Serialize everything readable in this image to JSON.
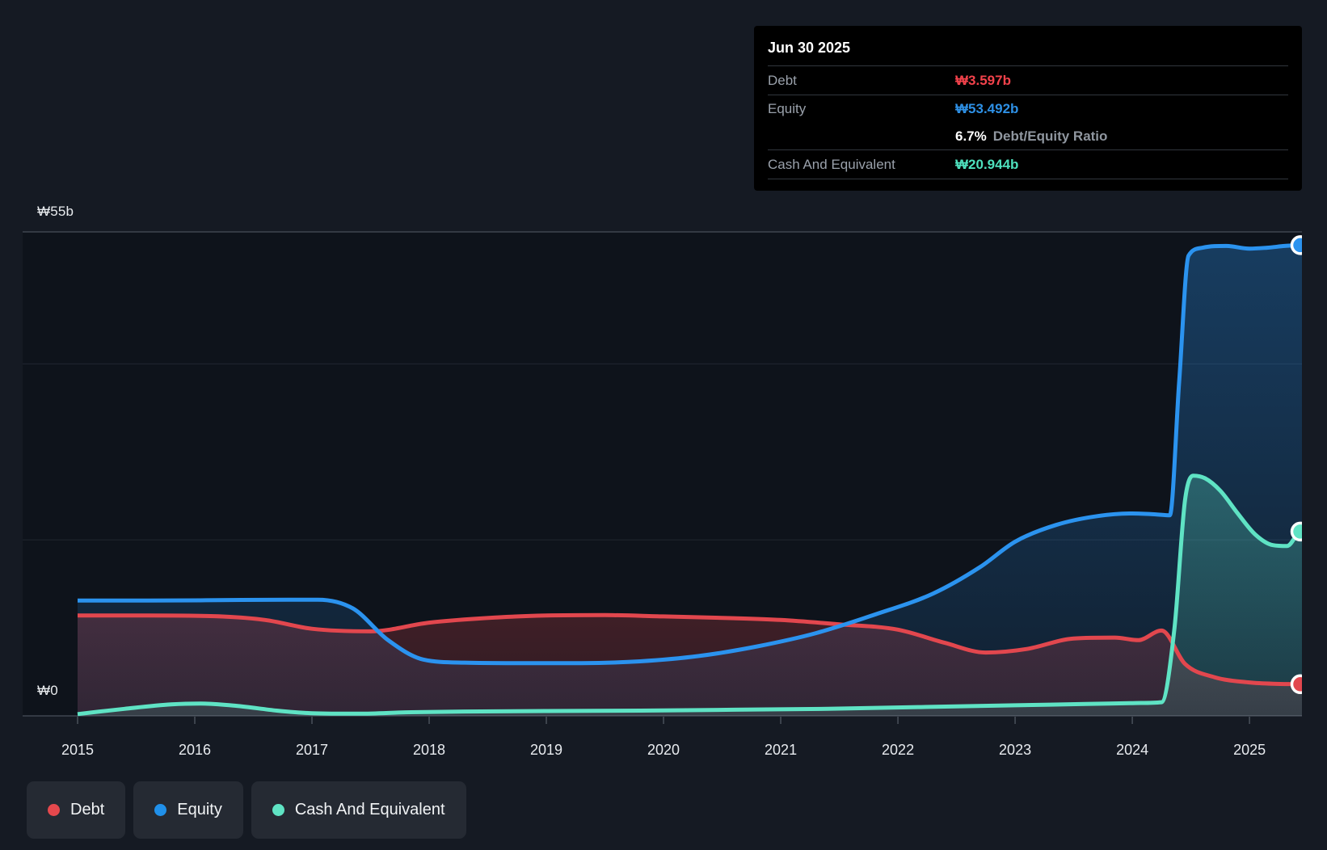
{
  "page": {
    "bg": "#151a23",
    "plot_bg": "#0e131b"
  },
  "tooltip": {
    "date": "Jun 30 2025",
    "debt_label": "Debt",
    "debt_value": "₩3.597b",
    "debt_color": "#f2424b",
    "equity_label": "Equity",
    "equity_value": "₩53.492b",
    "equity_color": "#2e90e5",
    "ratio_value": "6.7%",
    "ratio_label": "Debt/Equity Ratio",
    "cash_label": "Cash And Equivalent",
    "cash_value": "₩20.944b",
    "cash_color": "#4ee0bd"
  },
  "y_axis": {
    "top_label": "₩55b",
    "bottom_label": "₩0"
  },
  "x_axis": {
    "ticks": [
      "2015",
      "2016",
      "2017",
      "2018",
      "2019",
      "2020",
      "2021",
      "2022",
      "2023",
      "2024",
      "2025"
    ]
  },
  "legend": {
    "items": [
      {
        "label": "Debt",
        "color": "#e5484d"
      },
      {
        "label": "Equity",
        "color": "#2090ea"
      },
      {
        "label": "Cash And Equivalent",
        "color": "#5fe3c4"
      }
    ]
  },
  "chart_data": {
    "type": "area",
    "title": "Debt to Equity History",
    "x_unit": "year",
    "y_unit": "₩ billions",
    "xlim": [
      2015,
      2025.42
    ],
    "ylim": [
      0,
      55
    ],
    "grid": "horizontal",
    "gridline_values": [
      55,
      40,
      20,
      0
    ],
    "legend_position": "bottom-left",
    "series": [
      {
        "name": "Debt",
        "color": "#e2474e",
        "last_value_label": "₩3.597b",
        "points": [
          [
            2015.0,
            11.4
          ],
          [
            2015.6,
            11.4
          ],
          [
            2016.1,
            11.35
          ],
          [
            2016.6,
            10.9
          ],
          [
            2017.0,
            9.9
          ],
          [
            2017.5,
            9.6
          ],
          [
            2018.0,
            10.6
          ],
          [
            2018.6,
            11.2
          ],
          [
            2019.0,
            11.4
          ],
          [
            2019.5,
            11.45
          ],
          [
            2020.0,
            11.3
          ],
          [
            2020.6,
            11.1
          ],
          [
            2021.0,
            10.9
          ],
          [
            2021.5,
            10.4
          ],
          [
            2022.0,
            9.8
          ],
          [
            2022.4,
            8.3
          ],
          [
            2022.75,
            7.2
          ],
          [
            2023.1,
            7.6
          ],
          [
            2023.5,
            8.8
          ],
          [
            2023.85,
            8.9
          ],
          [
            2024.05,
            8.6
          ],
          [
            2024.25,
            9.7
          ],
          [
            2024.45,
            5.9
          ],
          [
            2024.7,
            4.4
          ],
          [
            2025.0,
            3.8
          ],
          [
            2025.2,
            3.65
          ],
          [
            2025.42,
            3.597
          ]
        ]
      },
      {
        "name": "Equity",
        "color": "#2b93ef",
        "last_value_label": "₩53.492b",
        "points": [
          [
            2015.0,
            13.1
          ],
          [
            2015.6,
            13.1
          ],
          [
            2016.2,
            13.15
          ],
          [
            2016.8,
            13.2
          ],
          [
            2017.05,
            13.2
          ],
          [
            2017.35,
            12.2
          ],
          [
            2017.65,
            8.6
          ],
          [
            2017.95,
            6.4
          ],
          [
            2018.3,
            6.05
          ],
          [
            2018.8,
            6.0
          ],
          [
            2019.3,
            6.0
          ],
          [
            2019.8,
            6.2
          ],
          [
            2020.3,
            6.8
          ],
          [
            2020.8,
            7.9
          ],
          [
            2021.3,
            9.4
          ],
          [
            2021.8,
            11.5
          ],
          [
            2022.3,
            13.9
          ],
          [
            2022.7,
            16.9
          ],
          [
            2023.0,
            19.8
          ],
          [
            2023.35,
            21.7
          ],
          [
            2023.7,
            22.7
          ],
          [
            2024.0,
            23.0
          ],
          [
            2024.2,
            22.9
          ],
          [
            2024.32,
            22.8
          ],
          [
            2024.4,
            38.0
          ],
          [
            2024.48,
            52.3
          ],
          [
            2024.6,
            53.2
          ],
          [
            2024.8,
            53.4
          ],
          [
            2025.0,
            53.1
          ],
          [
            2025.15,
            53.2
          ],
          [
            2025.3,
            53.4
          ],
          [
            2025.42,
            53.492
          ]
        ]
      },
      {
        "name": "Cash And Equivalent",
        "color": "#5fe3c4",
        "last_value_label": "₩20.944b",
        "points": [
          [
            2015.0,
            0.2
          ],
          [
            2015.4,
            0.8
          ],
          [
            2015.8,
            1.3
          ],
          [
            2016.05,
            1.4
          ],
          [
            2016.35,
            1.15
          ],
          [
            2016.7,
            0.6
          ],
          [
            2017.0,
            0.3
          ],
          [
            2017.4,
            0.25
          ],
          [
            2017.8,
            0.4
          ],
          [
            2018.3,
            0.5
          ],
          [
            2019.0,
            0.55
          ],
          [
            2019.8,
            0.6
          ],
          [
            2020.6,
            0.7
          ],
          [
            2021.4,
            0.8
          ],
          [
            2022.2,
            1.0
          ],
          [
            2023.0,
            1.2
          ],
          [
            2023.6,
            1.35
          ],
          [
            2024.0,
            1.45
          ],
          [
            2024.25,
            1.55
          ],
          [
            2024.36,
            10.0
          ],
          [
            2024.45,
            24.5
          ],
          [
            2024.52,
            27.3
          ],
          [
            2024.62,
            27.0
          ],
          [
            2024.75,
            25.6
          ],
          [
            2024.9,
            23.0
          ],
          [
            2025.05,
            20.6
          ],
          [
            2025.2,
            19.4
          ],
          [
            2025.32,
            19.3
          ],
          [
            2025.42,
            20.944
          ]
        ]
      }
    ]
  }
}
